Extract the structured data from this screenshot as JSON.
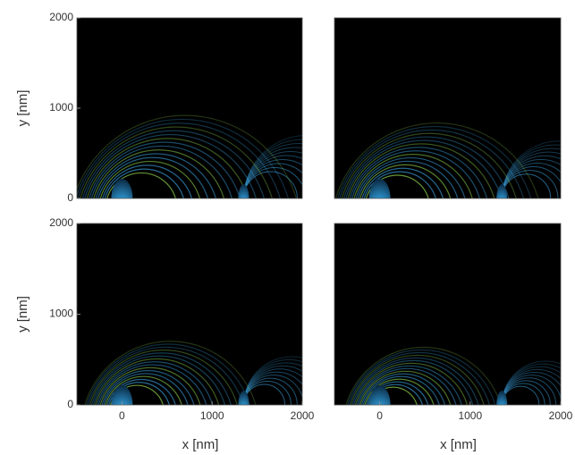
{
  "chart_data": [
    {
      "type": "heatmap",
      "ylabel": "y  [nm]",
      "xlim": [
        -500,
        2000
      ],
      "ylim": [
        0,
        2000
      ],
      "yticks": [
        0,
        1000,
        2000
      ]
    },
    {
      "type": "heatmap",
      "xlim": [
        -500,
        2000
      ],
      "ylim": [
        0,
        2000
      ]
    },
    {
      "type": "heatmap",
      "ylabel": "y [nm]",
      "xlabel": "x  [nm]",
      "xlim": [
        -500,
        2000
      ],
      "ylim": [
        0,
        2000
      ],
      "xticks": [
        0,
        1000,
        2000
      ],
      "yticks": [
        0,
        1000,
        2000
      ]
    },
    {
      "type": "heatmap",
      "xlabel": "x [nm]",
      "xlim": [
        -500,
        2000
      ],
      "ylim": [
        0,
        2000
      ],
      "xticks": [
        0,
        1000,
        2000
      ]
    }
  ]
}
